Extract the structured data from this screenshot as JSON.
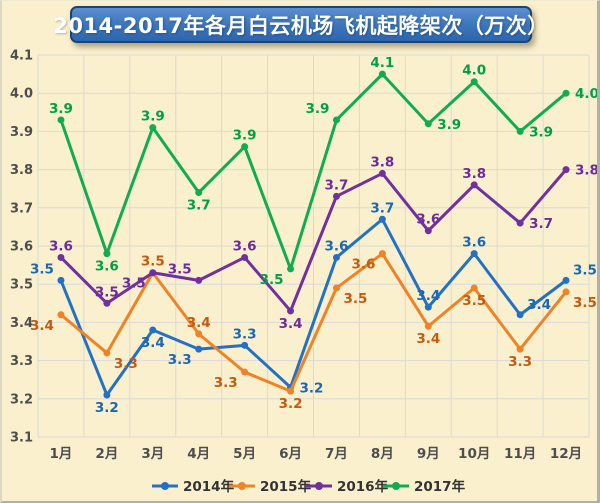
{
  "title": {
    "text": "2014-2017年各月白云机场飞机起降架次（万次）"
  },
  "colors": {
    "background": "#FBF0CD",
    "gridline": "#D9D9D9",
    "axis_text": "#4D4D4D",
    "legend_text": "#333333",
    "title_bar_fill_top": "#5C90CF",
    "title_bar_fill_bottom": "#2E66AD",
    "title_bar_border": "#1B4473",
    "title_text": "#FFFFFF"
  },
  "chart_data": {
    "type": "line",
    "title": "2014-2017年各月白云机场飞机起降架次（万次）",
    "categories": [
      "1月",
      "2月",
      "3月",
      "4月",
      "5月",
      "6月",
      "7月",
      "8月",
      "9月",
      "10月",
      "11月",
      "12月"
    ],
    "y_axis": {
      "min": 3.1,
      "max": 4.1,
      "step": 0.1
    },
    "grid": true,
    "legend_position": "bottom",
    "series": [
      {
        "name": "2014年",
        "color": "#2271C7",
        "label_color": "#1B66B8",
        "values": [
          3.5,
          3.2,
          3.4,
          3.3,
          3.3,
          3.2,
          3.6,
          3.7,
          3.4,
          3.6,
          3.4,
          3.5
        ],
        "values_precise": [
          3.51,
          3.21,
          3.38,
          3.33,
          3.34,
          3.23,
          3.57,
          3.67,
          3.44,
          3.58,
          3.42,
          3.51
        ],
        "label_pos": [
          "above-left",
          "below",
          "below",
          "below-left",
          "above",
          "right",
          "above",
          "above",
          "above",
          "above",
          "above-right",
          "above-right"
        ]
      },
      {
        "name": "2015年",
        "color": "#F08327",
        "label_color": "#C55A11",
        "values": [
          3.4,
          3.3,
          3.5,
          3.4,
          3.3,
          3.2,
          3.5,
          3.6,
          3.4,
          3.5,
          3.3,
          3.5
        ],
        "values_precise": [
          3.42,
          3.32,
          3.53,
          3.37,
          3.27,
          3.22,
          3.49,
          3.58,
          3.39,
          3.49,
          3.33,
          3.48
        ],
        "label_pos": [
          "below-left",
          "below-right",
          "above",
          "above",
          "below-left",
          "below",
          "below-right",
          "below-left",
          "below",
          "below",
          "below",
          "below-right"
        ]
      },
      {
        "name": "2016年",
        "color": "#7030A0",
        "label_color": "#6A2C9E",
        "values": [
          3.6,
          3.5,
          3.5,
          3.5,
          3.6,
          3.4,
          3.7,
          3.8,
          3.6,
          3.8,
          3.7,
          3.8
        ],
        "values_precise": [
          3.57,
          3.45,
          3.53,
          3.51,
          3.57,
          3.43,
          3.73,
          3.79,
          3.64,
          3.76,
          3.66,
          3.8
        ],
        "label_pos": [
          "above",
          "above",
          "below-left",
          "above-left",
          "above",
          "below",
          "above",
          "above",
          "above",
          "above",
          "right",
          "right"
        ]
      },
      {
        "name": "2017年",
        "color": "#0FAD4F",
        "label_color": "#00A048",
        "values": [
          3.9,
          3.6,
          3.9,
          3.7,
          3.9,
          3.5,
          3.9,
          4.1,
          3.9,
          4.0,
          3.9,
          4.0
        ],
        "values_precise": [
          3.93,
          3.58,
          3.91,
          3.74,
          3.86,
          3.54,
          3.93,
          4.05,
          3.92,
          4.03,
          3.9,
          4.0
        ],
        "label_pos": [
          "above",
          "below",
          "above",
          "below",
          "above",
          "below-left",
          "above-left",
          "above",
          "right",
          "above",
          "right",
          "right"
        ]
      }
    ]
  }
}
